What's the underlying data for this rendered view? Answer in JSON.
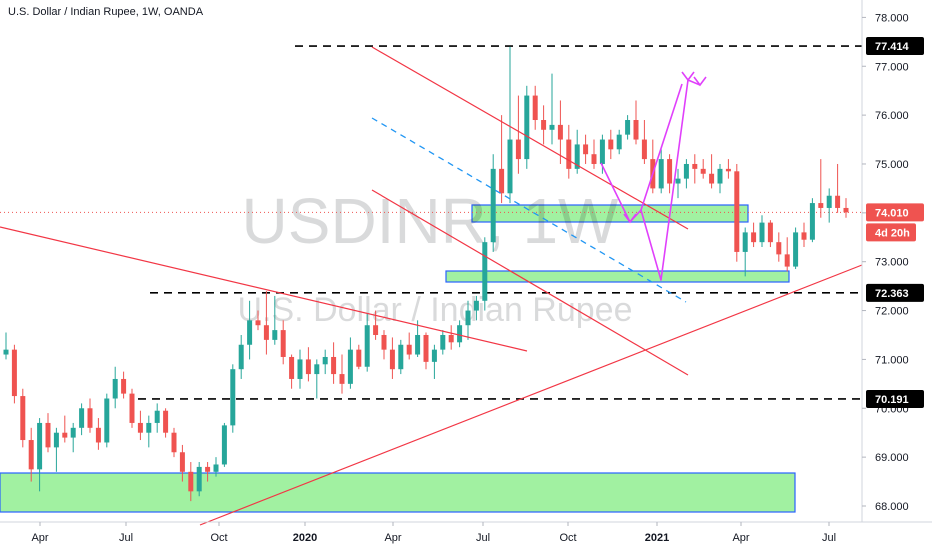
{
  "header": {
    "title": "U.S. Dollar / Indian Rupee, 1W, OANDA"
  },
  "watermark": {
    "symbol": "USDINR, 1W",
    "name": "U.S. Dollar / Indian Rupee"
  },
  "colors": {
    "up": "#26a69a",
    "down": "#ef5350",
    "trend": "#f23645",
    "projection": "#e040fb",
    "zone_fill": "#90ee90",
    "zone_border": "#2962ff",
    "price_badge": "#ef5350",
    "level_badge": "#000000"
  },
  "chart_data": {
    "type": "candlestick",
    "title": "U.S. Dollar / Indian Rupee, 1W, OANDA",
    "ylim": [
      67.7,
      78.3
    ],
    "y_ticks": [
      "68.000",
      "69.000",
      "70.000",
      "71.000",
      "72.000",
      "73.000",
      "74.000",
      "75.000",
      "76.000",
      "77.000",
      "78.000"
    ],
    "x_ticks": [
      "Apr",
      "Jul",
      "Oct",
      "2020",
      "Apr",
      "Jul",
      "Oct",
      "2021",
      "Apr",
      "Jul"
    ],
    "x_ticks_bold": [
      "2020",
      "2021"
    ],
    "levels": [
      "77.414",
      "72.363",
      "70.191"
    ],
    "current_price": "74.010",
    "countdown": "4d 20h",
    "candles": [
      [
        71.1,
        71.55,
        71.0,
        71.2
      ],
      [
        71.2,
        71.3,
        70.1,
        70.25
      ],
      [
        70.25,
        70.4,
        69.2,
        69.35
      ],
      [
        69.35,
        69.6,
        68.5,
        68.75
      ],
      [
        68.75,
        69.8,
        68.3,
        69.7
      ],
      [
        69.7,
        69.9,
        69.1,
        69.2
      ],
      [
        69.2,
        69.6,
        68.7,
        69.5
      ],
      [
        69.5,
        69.85,
        69.3,
        69.4
      ],
      [
        69.4,
        69.7,
        69.1,
        69.6
      ],
      [
        69.6,
        70.1,
        69.45,
        70.0
      ],
      [
        70.0,
        70.2,
        69.5,
        69.6
      ],
      [
        69.6,
        69.8,
        69.15,
        69.3
      ],
      [
        69.3,
        70.3,
        69.2,
        70.2
      ],
      [
        70.2,
        70.85,
        70.0,
        70.6
      ],
      [
        70.6,
        70.75,
        70.2,
        70.3
      ],
      [
        70.3,
        70.4,
        69.6,
        69.7
      ],
      [
        69.7,
        69.95,
        69.35,
        69.5
      ],
      [
        69.5,
        69.85,
        69.2,
        69.7
      ],
      [
        69.7,
        70.1,
        69.5,
        69.95
      ],
      [
        69.95,
        70.0,
        69.4,
        69.5
      ],
      [
        69.5,
        69.6,
        69.0,
        69.1
      ],
      [
        69.1,
        69.25,
        68.5,
        68.7
      ],
      [
        68.7,
        68.9,
        68.1,
        68.3
      ],
      [
        68.3,
        68.9,
        68.2,
        68.8
      ],
      [
        68.8,
        68.9,
        68.5,
        68.7
      ],
      [
        68.7,
        69.0,
        68.6,
        68.85
      ],
      [
        68.85,
        69.7,
        68.8,
        69.65
      ],
      [
        69.65,
        70.9,
        69.5,
        70.8
      ],
      [
        70.8,
        71.5,
        70.6,
        71.3
      ],
      [
        71.3,
        72.2,
        71.0,
        71.8
      ],
      [
        71.8,
        72.0,
        71.6,
        71.7
      ],
      [
        71.7,
        72.4,
        71.1,
        71.4
      ],
      [
        71.4,
        72.3,
        71.3,
        71.6
      ],
      [
        71.6,
        71.8,
        70.9,
        71.05
      ],
      [
        71.05,
        71.1,
        70.4,
        70.6
      ],
      [
        70.6,
        71.2,
        70.4,
        71.0
      ],
      [
        71.0,
        71.25,
        70.55,
        70.7
      ],
      [
        70.7,
        71.0,
        70.2,
        70.9
      ],
      [
        70.9,
        71.2,
        70.7,
        71.05
      ],
      [
        71.05,
        71.35,
        70.5,
        70.7
      ],
      [
        70.7,
        71.1,
        70.3,
        70.5
      ],
      [
        70.5,
        71.45,
        70.4,
        71.2
      ],
      [
        71.2,
        71.3,
        70.8,
        70.85
      ],
      [
        70.85,
        71.95,
        70.75,
        71.7
      ],
      [
        71.7,
        72.0,
        71.4,
        71.5
      ],
      [
        71.5,
        71.6,
        71.0,
        71.2
      ],
      [
        71.2,
        71.45,
        70.6,
        70.8
      ],
      [
        70.8,
        71.4,
        70.7,
        71.3
      ],
      [
        71.3,
        71.55,
        71.0,
        71.1
      ],
      [
        71.1,
        71.8,
        71.05,
        71.5
      ],
      [
        71.5,
        71.55,
        70.8,
        70.95
      ],
      [
        70.95,
        71.3,
        70.6,
        71.2
      ],
      [
        71.2,
        71.6,
        71.1,
        71.5
      ],
      [
        71.5,
        71.7,
        71.2,
        71.35
      ],
      [
        71.35,
        71.8,
        71.25,
        71.7
      ],
      [
        71.7,
        72.2,
        71.4,
        72.0
      ],
      [
        72.0,
        72.3,
        71.8,
        72.2
      ],
      [
        72.2,
        73.5,
        72.0,
        73.4
      ],
      [
        73.4,
        75.2,
        73.2,
        74.9
      ],
      [
        74.9,
        76.0,
        74.2,
        74.4
      ],
      [
        74.4,
        77.4,
        74.2,
        75.5
      ],
      [
        75.5,
        76.4,
        74.8,
        75.1
      ],
      [
        75.1,
        76.6,
        74.9,
        76.4
      ],
      [
        76.4,
        76.6,
        75.7,
        75.9
      ],
      [
        75.9,
        76.2,
        75.4,
        75.7
      ],
      [
        75.7,
        76.85,
        75.4,
        75.8
      ],
      [
        75.8,
        76.3,
        75.0,
        75.5
      ],
      [
        75.5,
        75.8,
        74.7,
        74.9
      ],
      [
        74.9,
        75.7,
        74.8,
        75.4
      ],
      [
        75.4,
        75.6,
        75.0,
        75.2
      ],
      [
        75.2,
        75.5,
        74.9,
        75.0
      ],
      [
        75.0,
        75.6,
        74.8,
        75.5
      ],
      [
        75.5,
        75.7,
        75.1,
        75.3
      ],
      [
        75.3,
        75.7,
        75.2,
        75.6
      ],
      [
        75.6,
        76.0,
        75.5,
        75.9
      ],
      [
        75.9,
        76.3,
        75.4,
        75.5
      ],
      [
        75.5,
        75.9,
        75.0,
        75.1
      ],
      [
        75.1,
        75.5,
        74.4,
        74.5
      ],
      [
        74.5,
        75.3,
        74.4,
        75.1
      ],
      [
        75.1,
        75.2,
        74.4,
        74.6
      ],
      [
        74.6,
        74.9,
        74.3,
        74.7
      ],
      [
        74.7,
        75.1,
        74.5,
        75.0
      ],
      [
        75.0,
        75.2,
        74.6,
        74.9
      ],
      [
        74.9,
        75.1,
        74.7,
        74.8
      ],
      [
        74.8,
        75.2,
        74.5,
        74.6
      ],
      [
        74.6,
        75.0,
        74.4,
        74.9
      ],
      [
        74.9,
        75.1,
        74.7,
        74.85
      ],
      [
        74.85,
        75.0,
        73.0,
        73.2
      ],
      [
        73.2,
        73.7,
        72.7,
        73.6
      ],
      [
        73.6,
        73.8,
        73.3,
        73.4
      ],
      [
        73.4,
        73.95,
        73.3,
        73.8
      ],
      [
        73.8,
        73.85,
        73.3,
        73.4
      ],
      [
        73.4,
        73.6,
        73.0,
        73.15
      ],
      [
        73.15,
        73.5,
        72.8,
        72.9
      ],
      [
        72.9,
        73.7,
        72.85,
        73.6
      ],
      [
        73.6,
        73.8,
        73.3,
        73.45
      ],
      [
        73.45,
        74.3,
        73.4,
        74.2
      ],
      [
        74.2,
        75.1,
        73.9,
        74.1
      ],
      [
        74.1,
        74.5,
        73.8,
        74.35
      ],
      [
        74.35,
        75.0,
        74.0,
        74.1
      ],
      [
        74.1,
        74.3,
        73.9,
        74.01
      ]
    ]
  }
}
